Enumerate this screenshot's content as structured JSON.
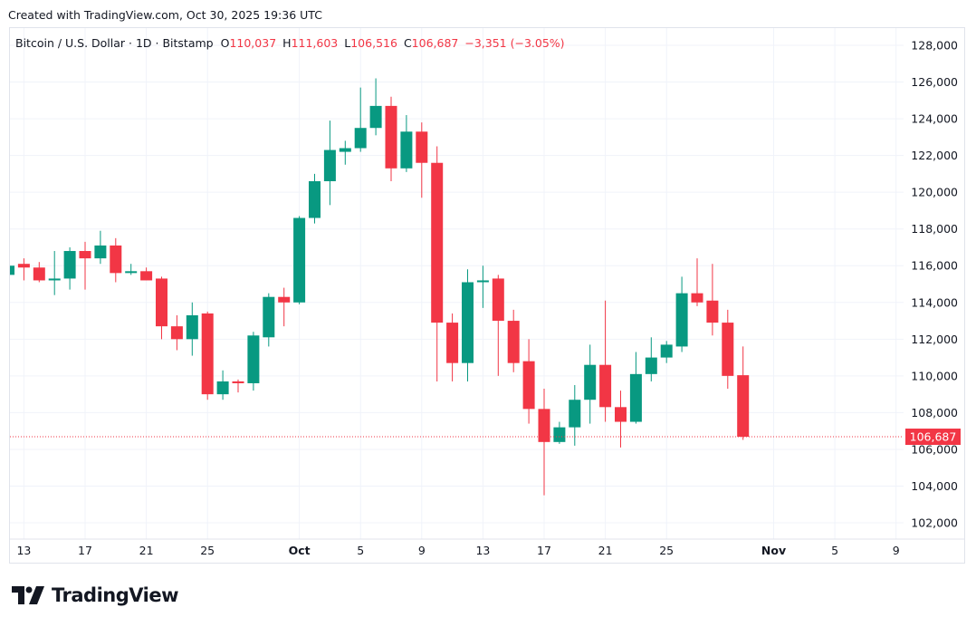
{
  "watermark_header": "Created with TradingView.com, Oct 30, 2025 19:36 UTC",
  "legend": {
    "symbol": "Bitcoin / U.S. Dollar · 1D · Bitstamp",
    "o_label": "O",
    "o": "110,037",
    "h_label": "H",
    "h": "111,603",
    "l_label": "L",
    "l": "106,516",
    "c_label": "C",
    "c": "106,687",
    "change": "−3,351 (−3.05%)"
  },
  "brand": "TradingView",
  "colors": {
    "up": "#089981",
    "down": "#f23645",
    "grid": "#f0f3fa",
    "text": "#131722"
  },
  "chart_data": {
    "type": "candlestick",
    "interval": "1D",
    "y_ticks": [
      "102,000",
      "104,000",
      "106,000",
      "108,000",
      "110,000",
      "112,000",
      "114,000",
      "116,000",
      "118,000",
      "120,000",
      "122,000",
      "124,000",
      "126,000",
      "128,000"
    ],
    "y_tick_values": [
      102000,
      104000,
      106000,
      108000,
      110000,
      112000,
      114000,
      116000,
      118000,
      120000,
      122000,
      124000,
      126000,
      128000
    ],
    "ylim": [
      101000,
      129500
    ],
    "x_ticks": [
      {
        "label": "13",
        "date": "2025-09-13"
      },
      {
        "label": "17",
        "date": "2025-09-17"
      },
      {
        "label": "21",
        "date": "2025-09-21"
      },
      {
        "label": "25",
        "date": "2025-09-25"
      },
      {
        "label": "Oct",
        "date": "2025-10-01"
      },
      {
        "label": "5",
        "date": "2025-10-05"
      },
      {
        "label": "9",
        "date": "2025-10-09"
      },
      {
        "label": "13",
        "date": "2025-10-13"
      },
      {
        "label": "17",
        "date": "2025-10-17"
      },
      {
        "label": "21",
        "date": "2025-10-21"
      },
      {
        "label": "25",
        "date": "2025-10-25"
      },
      {
        "label": "Nov",
        "date": "2025-11-01"
      },
      {
        "label": "5",
        "date": "2025-11-05"
      },
      {
        "label": "9",
        "date": "2025-11-09"
      }
    ],
    "x_range": [
      "2025-09-12",
      "2025-11-10"
    ],
    "last_price": 106687,
    "last_price_label": "106,687",
    "grid": true,
    "candles": [
      [
        "2025-09-12",
        115500,
        116100,
        115400,
        116000
      ],
      [
        "2025-09-13",
        116100,
        116400,
        115200,
        115900
      ],
      [
        "2025-09-14",
        115900,
        116200,
        115100,
        115200
      ],
      [
        "2025-09-15",
        115200,
        116800,
        114400,
        115300
      ],
      [
        "2025-09-16",
        115300,
        117000,
        114700,
        116800
      ],
      [
        "2025-09-17",
        116800,
        117300,
        114700,
        116400
      ],
      [
        "2025-09-18",
        116400,
        117900,
        116100,
        117100
      ],
      [
        "2025-09-19",
        117100,
        117500,
        115100,
        115600
      ],
      [
        "2025-09-20",
        115600,
        116100,
        115500,
        115700
      ],
      [
        "2025-09-21",
        115700,
        115900,
        115200,
        115200
      ],
      [
        "2025-09-22",
        115300,
        115400,
        112000,
        112700
      ],
      [
        "2025-09-23",
        112700,
        113300,
        111400,
        112000
      ],
      [
        "2025-09-24",
        112000,
        114000,
        111100,
        113300
      ],
      [
        "2025-09-25",
        113400,
        113500,
        108700,
        109000
      ],
      [
        "2025-09-26",
        109000,
        110300,
        108700,
        109700
      ],
      [
        "2025-09-27",
        109700,
        109800,
        109100,
        109600
      ],
      [
        "2025-09-28",
        109600,
        112400,
        109200,
        112200
      ],
      [
        "2025-09-29",
        112100,
        114500,
        111600,
        114300
      ],
      [
        "2025-09-30",
        114300,
        114800,
        112700,
        114000
      ],
      [
        "2025-10-01",
        114000,
        118700,
        113900,
        118600
      ],
      [
        "2025-10-02",
        118600,
        121000,
        118300,
        120600
      ],
      [
        "2025-10-03",
        120600,
        123900,
        119300,
        122300
      ],
      [
        "2025-10-04",
        122200,
        122800,
        121500,
        122400
      ],
      [
        "2025-10-05",
        122400,
        125700,
        122200,
        123500
      ],
      [
        "2025-10-06",
        123500,
        126200,
        123100,
        124700
      ],
      [
        "2025-10-07",
        124700,
        125200,
        120600,
        121300
      ],
      [
        "2025-10-08",
        121300,
        124200,
        121100,
        123300
      ],
      [
        "2025-10-09",
        123300,
        123800,
        119700,
        121600
      ],
      [
        "2025-10-10",
        121600,
        122500,
        109700,
        112900
      ],
      [
        "2025-10-11",
        112900,
        113400,
        109700,
        110700
      ],
      [
        "2025-10-12",
        110700,
        115800,
        109700,
        115100
      ],
      [
        "2025-10-13",
        115100,
        116000,
        113700,
        115200
      ],
      [
        "2025-10-14",
        115300,
        115500,
        110000,
        113000
      ],
      [
        "2025-10-15",
        113000,
        113600,
        110200,
        110700
      ],
      [
        "2025-10-16",
        110800,
        112000,
        107400,
        108200
      ],
      [
        "2025-10-17",
        108200,
        109300,
        103500,
        106400
      ],
      [
        "2025-10-18",
        106400,
        107500,
        106300,
        107200
      ],
      [
        "2025-10-19",
        107200,
        109500,
        106200,
        108700
      ],
      [
        "2025-10-20",
        108700,
        111700,
        107400,
        110600
      ],
      [
        "2025-10-21",
        110600,
        114100,
        107500,
        108300
      ],
      [
        "2025-10-22",
        108300,
        109200,
        106100,
        107500
      ],
      [
        "2025-10-23",
        107500,
        111300,
        107400,
        110100
      ],
      [
        "2025-10-24",
        110100,
        112100,
        109700,
        111000
      ],
      [
        "2025-10-25",
        111000,
        111900,
        110700,
        111700
      ],
      [
        "2025-10-26",
        111600,
        115400,
        111300,
        114500
      ],
      [
        "2025-10-27",
        114500,
        116400,
        113800,
        114000
      ],
      [
        "2025-10-28",
        114100,
        116100,
        112200,
        112900
      ],
      [
        "2025-10-29",
        112900,
        113600,
        109300,
        110000
      ],
      [
        "2025-10-30",
        110037,
        111603,
        106516,
        106687
      ]
    ]
  }
}
